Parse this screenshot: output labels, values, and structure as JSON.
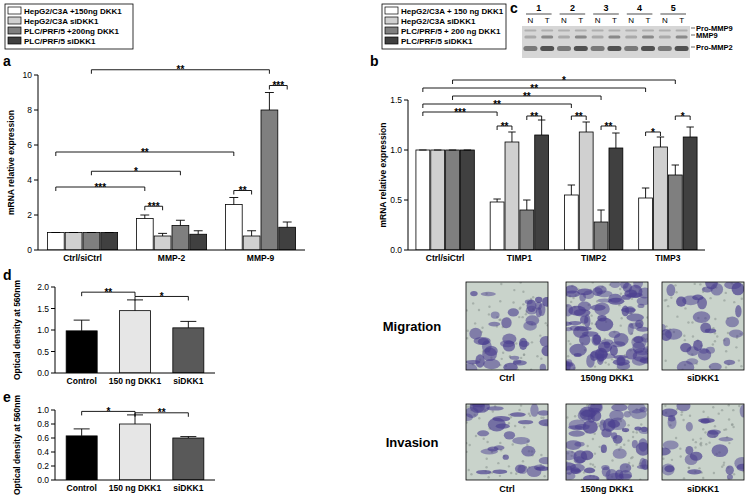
{
  "chart_data": [
    {
      "type": "bar",
      "title": "a",
      "ylabel": "mRNA relative expression",
      "categories": [
        "Ctrl/siCtrl",
        "MMP-2",
        "MMP-9"
      ],
      "series": [
        {
          "name": "HepG2/C3A +150ng DKK1",
          "color": "#ffffff",
          "values": [
            1,
            1.8,
            2.6
          ],
          "errors": [
            0,
            0.2,
            0.4
          ]
        },
        {
          "name": "HepG2/C3A siDKK1",
          "color": "#d0d0d0",
          "values": [
            1,
            0.8,
            0.8
          ],
          "errors": [
            0,
            0.15,
            0.3
          ]
        },
        {
          "name": "PLC/PRF/5 +200ng DKK1",
          "color": "#7f7f7f",
          "values": [
            1,
            1.4,
            8.0
          ],
          "errors": [
            0,
            0.3,
            1.0
          ]
        },
        {
          "name": "PLC/PRF/5  siDKK1",
          "color": "#404040",
          "values": [
            1,
            0.9,
            1.3
          ],
          "errors": [
            0,
            0.2,
            0.3
          ]
        }
      ],
      "ylim": [
        0,
        10
      ],
      "yticks": [
        0,
        2,
        4,
        6,
        8,
        10
      ],
      "legend": "top-left",
      "annotations": [
        {
          "text": "**",
          "from": [
            0,
            2
          ],
          "to": [
            2,
            2
          ],
          "y": 10.3
        },
        {
          "text": "***",
          "from": [
            2,
            2
          ],
          "to": [
            2,
            3
          ],
          "y": 9.4
        },
        {
          "text": "**",
          "from": [
            2,
            0
          ],
          "to": [
            2,
            1
          ],
          "y": 3.4
        },
        {
          "text": "**",
          "from": [
            0,
            0
          ],
          "to": [
            2,
            0
          ],
          "y": 5.6
        },
        {
          "text": "*",
          "from": [
            0,
            2
          ],
          "to": [
            1,
            2
          ],
          "y": 4.5
        },
        {
          "text": "***",
          "from": [
            0,
            0
          ],
          "to": [
            1,
            0
          ],
          "y": 3.6
        },
        {
          "text": "***",
          "from": [
            1,
            0
          ],
          "to": [
            1,
            1
          ],
          "y": 2.5
        }
      ]
    },
    {
      "type": "bar",
      "title": "b",
      "ylabel": "mRNA relative expression",
      "categories": [
        "Ctrl/siCtrl",
        "TIMP1",
        "TIMP2",
        "TIMP3"
      ],
      "series": [
        {
          "name": "HepG2/C3A + 150 ng DKK1",
          "color": "#ffffff",
          "values": [
            1,
            0.48,
            0.55,
            0.52
          ],
          "errors": [
            0,
            0.03,
            0.1,
            0.1
          ]
        },
        {
          "name": "HepG2/C3A siDKK1",
          "color": "#d0d0d0",
          "values": [
            1,
            1.08,
            1.18,
            1.03
          ],
          "errors": [
            0,
            0.1,
            0.1,
            0.1
          ]
        },
        {
          "name": "PLC/PRF/5 + 200 ng DKK1",
          "color": "#7f7f7f",
          "values": [
            1,
            0.4,
            0.28,
            0.75
          ],
          "errors": [
            0,
            0.1,
            0.12,
            0.1
          ]
        },
        {
          "name": "PLC/PRF/5 siDKK1",
          "color": "#404040",
          "values": [
            1,
            1.15,
            1.02,
            1.13
          ],
          "errors": [
            0,
            0.15,
            0.15,
            0.1
          ]
        }
      ],
      "ylim": [
        0,
        1.5
      ],
      "yticks": [
        {
          "value": 0,
          "label": "0.0"
        },
        0.5,
        {
          "value": 1,
          "label": "1.0"
        },
        1.5
      ],
      "legend": "top-left",
      "annotations": [
        {
          "text": "*",
          "from": [
            0,
            2
          ],
          "to": [
            3,
            2
          ],
          "y": 1.7
        },
        {
          "text": "**",
          "from": [
            0,
            0
          ],
          "to": [
            3,
            0
          ],
          "y": 1.62
        },
        {
          "text": "**",
          "from": [
            0,
            2
          ],
          "to": [
            2,
            2
          ],
          "y": 1.54
        },
        {
          "text": "**",
          "from": [
            0,
            0
          ],
          "to": [
            2,
            0
          ],
          "y": 1.46
        },
        {
          "text": "***",
          "from": [
            0,
            0
          ],
          "to": [
            1,
            0
          ],
          "y": 1.38
        },
        {
          "text": "**",
          "from": [
            1,
            0
          ],
          "to": [
            1,
            1
          ],
          "y": 1.24
        },
        {
          "text": "**",
          "from": [
            1,
            2
          ],
          "to": [
            1,
            3
          ],
          "y": 1.34
        },
        {
          "text": "**",
          "from": [
            2,
            0
          ],
          "to": [
            2,
            1
          ],
          "y": 1.34
        },
        {
          "text": "**",
          "from": [
            2,
            2
          ],
          "to": [
            2,
            3
          ],
          "y": 1.24
        },
        {
          "text": "*",
          "from": [
            3,
            0
          ],
          "to": [
            3,
            1
          ],
          "y": 1.18
        },
        {
          "text": "*",
          "from": [
            3,
            2
          ],
          "to": [
            3,
            3
          ],
          "y": 1.34
        }
      ]
    },
    {
      "type": "bar",
      "title": "d",
      "ylabel": "Optical density at 560nm",
      "categories": [
        "Control",
        "150 ng DKK1",
        "siDKK1"
      ],
      "values": [
        0.98,
        1.45,
        1.05
      ],
      "errors": [
        0.25,
        0.25,
        0.15
      ],
      "colors": [
        "#000000",
        "#e6e6e6",
        "#595959"
      ],
      "ylim": [
        0,
        2
      ],
      "yticks": [
        {
          "value": 0,
          "label": "0.0"
        },
        0.5,
        {
          "value": 1,
          "label": "1.0"
        },
        1.5,
        {
          "value": 2,
          "label": "2.0"
        }
      ],
      "annotations": [
        {
          "text": "**",
          "from": [
            0,
            0
          ],
          "to": [
            1,
            0
          ],
          "y": 1.88
        },
        {
          "text": "*",
          "from": [
            1,
            0
          ],
          "to": [
            2,
            0
          ],
          "y": 1.78
        }
      ]
    },
    {
      "type": "bar",
      "title": "e",
      "ylabel": "Optical density at 560nm",
      "categories": [
        "Control",
        "150 ng DKK1",
        "siDKK1"
      ],
      "values": [
        0.63,
        0.8,
        0.6
      ],
      "errors": [
        0.1,
        0.13,
        0.02
      ],
      "colors": [
        "#000000",
        "#e6e6e6",
        "#595959"
      ],
      "ylim": [
        0,
        1
      ],
      "yticks": [
        {
          "value": 0,
          "label": "0.0"
        },
        0.2,
        0.4,
        0.6,
        0.8,
        {
          "value": 1,
          "label": "1.0"
        }
      ],
      "annotations": [
        {
          "text": "*",
          "from": [
            0,
            0
          ],
          "to": [
            1,
            0
          ],
          "y": 0.98
        },
        {
          "text": "**",
          "from": [
            1,
            0
          ],
          "to": [
            2,
            0
          ],
          "y": 0.96
        }
      ]
    }
  ],
  "gel": {
    "title": "c",
    "lanes": [
      "1",
      "2",
      "3",
      "4",
      "5"
    ],
    "samples": [
      "N",
      "T"
    ],
    "bands": [
      "Pro-MMP9",
      "MMP9",
      "Pro-MMP2"
    ]
  },
  "micrographs": {
    "rows": [
      "Migration",
      "Invasion"
    ],
    "columns": [
      "Ctrl",
      "150ng DKK1",
      "siDKK1"
    ]
  }
}
